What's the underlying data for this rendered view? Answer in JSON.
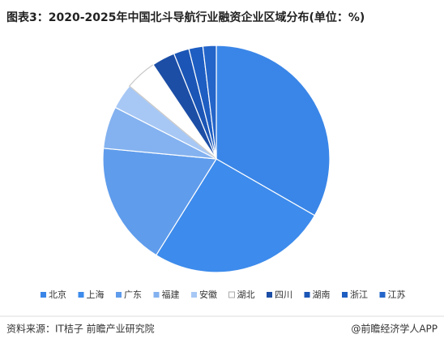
{
  "chart_data": {
    "type": "pie",
    "title": "图表3：2020-2025年中国北斗导航行业融资企业区域分布(单位：%)",
    "categories": [
      "北京",
      "上海",
      "广东",
      "福建",
      "安徽",
      "湖北",
      "四川",
      "湖南",
      "浙江",
      "江苏"
    ],
    "values": [
      33.3,
      25.6,
      17.6,
      6,
      3.6,
      4.5,
      3.3,
      2.2,
      2,
      1.9
    ],
    "colors": [
      "#3a86e8",
      "#3d8bec",
      "#5f9cec",
      "#84b2f0",
      "#a7c8f5",
      "#ffffff",
      "#1c4ea6",
      "#1b56b6",
      "#1e5ec2",
      "#2465c9"
    ],
    "source": "资料来源：IT桔子 前瞻产业研究院",
    "credit": "@前瞻经济学人APP"
  }
}
